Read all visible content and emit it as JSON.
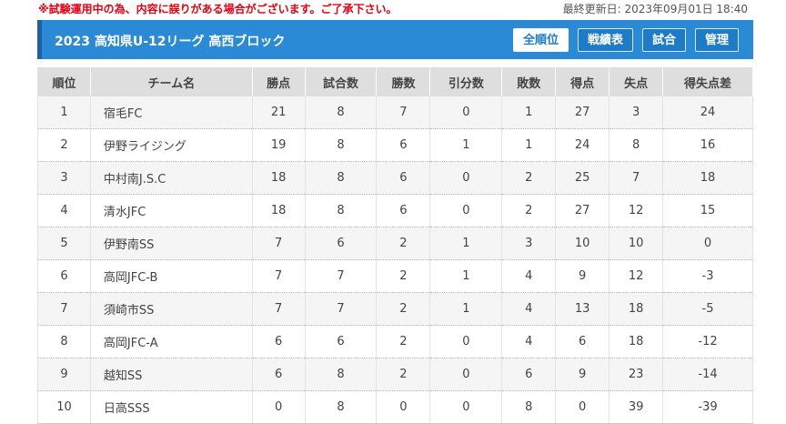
{
  "notice": "※試験運用中の為、内容に誤りがある場合がございます。ご了承下さい。",
  "updated": "最終更新日: 2023年09月01日 18:40",
  "header": {
    "title": "2023 高知県U-12リーグ 高西ブロック",
    "buttons": [
      "全順位",
      "戦績表",
      "試合",
      "管理"
    ],
    "active_button": "全順位"
  },
  "table": {
    "columns": [
      "順位",
      "チーム名",
      "勝点",
      "試合数",
      "勝数",
      "引分数",
      "敗数",
      "得点",
      "失点",
      "得失点差"
    ],
    "rows": [
      [
        "1",
        "宿毛FC",
        "21",
        "8",
        "7",
        "0",
        "1",
        "27",
        "3",
        "24"
      ],
      [
        "2",
        "伊野ライジング",
        "19",
        "8",
        "6",
        "1",
        "1",
        "24",
        "8",
        "16"
      ],
      [
        "3",
        "中村南J.S.C",
        "18",
        "8",
        "6",
        "0",
        "2",
        "25",
        "7",
        "18"
      ],
      [
        "4",
        "清水JFC",
        "18",
        "8",
        "6",
        "0",
        "2",
        "27",
        "12",
        "15"
      ],
      [
        "5",
        "伊野南SS",
        "7",
        "6",
        "2",
        "1",
        "3",
        "10",
        "10",
        "0"
      ],
      [
        "6",
        "高岡JFC-B",
        "7",
        "7",
        "2",
        "1",
        "4",
        "9",
        "12",
        "-3"
      ],
      [
        "7",
        "須崎市SS",
        "7",
        "7",
        "2",
        "1",
        "4",
        "13",
        "18",
        "-5"
      ],
      [
        "8",
        "高岡JFC-A",
        "6",
        "6",
        "2",
        "0",
        "4",
        "6",
        "18",
        "-12"
      ],
      [
        "9",
        "越知SS",
        "6",
        "8",
        "2",
        "0",
        "6",
        "9",
        "23",
        "-14"
      ],
      [
        "10",
        "日高SSS",
        "0",
        "8",
        "0",
        "0",
        "8",
        "0",
        "39",
        "-39"
      ]
    ]
  }
}
